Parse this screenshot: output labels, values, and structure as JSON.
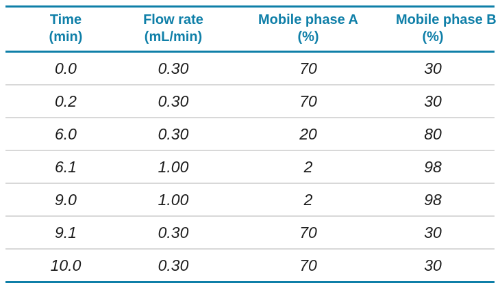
{
  "table": {
    "accent_color": "#0f7fa8",
    "separator_color": "#d8d8d8",
    "columns": [
      {
        "label": "Time",
        "unit": "(min)"
      },
      {
        "label": "Flow rate",
        "unit": "(mL/min)"
      },
      {
        "label": "Mobile phase A",
        "unit": "(%)"
      },
      {
        "label": "Mobile phase B",
        "unit": "(%)"
      }
    ],
    "rows": [
      [
        "0.0",
        "0.30",
        "70",
        "30"
      ],
      [
        "0.2",
        "0.30",
        "70",
        "30"
      ],
      [
        "6.0",
        "0.30",
        "20",
        "80"
      ],
      [
        "6.1",
        "1.00",
        "2",
        "98"
      ],
      [
        "9.0",
        "1.00",
        "2",
        "98"
      ],
      [
        "9.1",
        "0.30",
        "70",
        "30"
      ],
      [
        "10.0",
        "0.30",
        "70",
        "30"
      ]
    ]
  }
}
